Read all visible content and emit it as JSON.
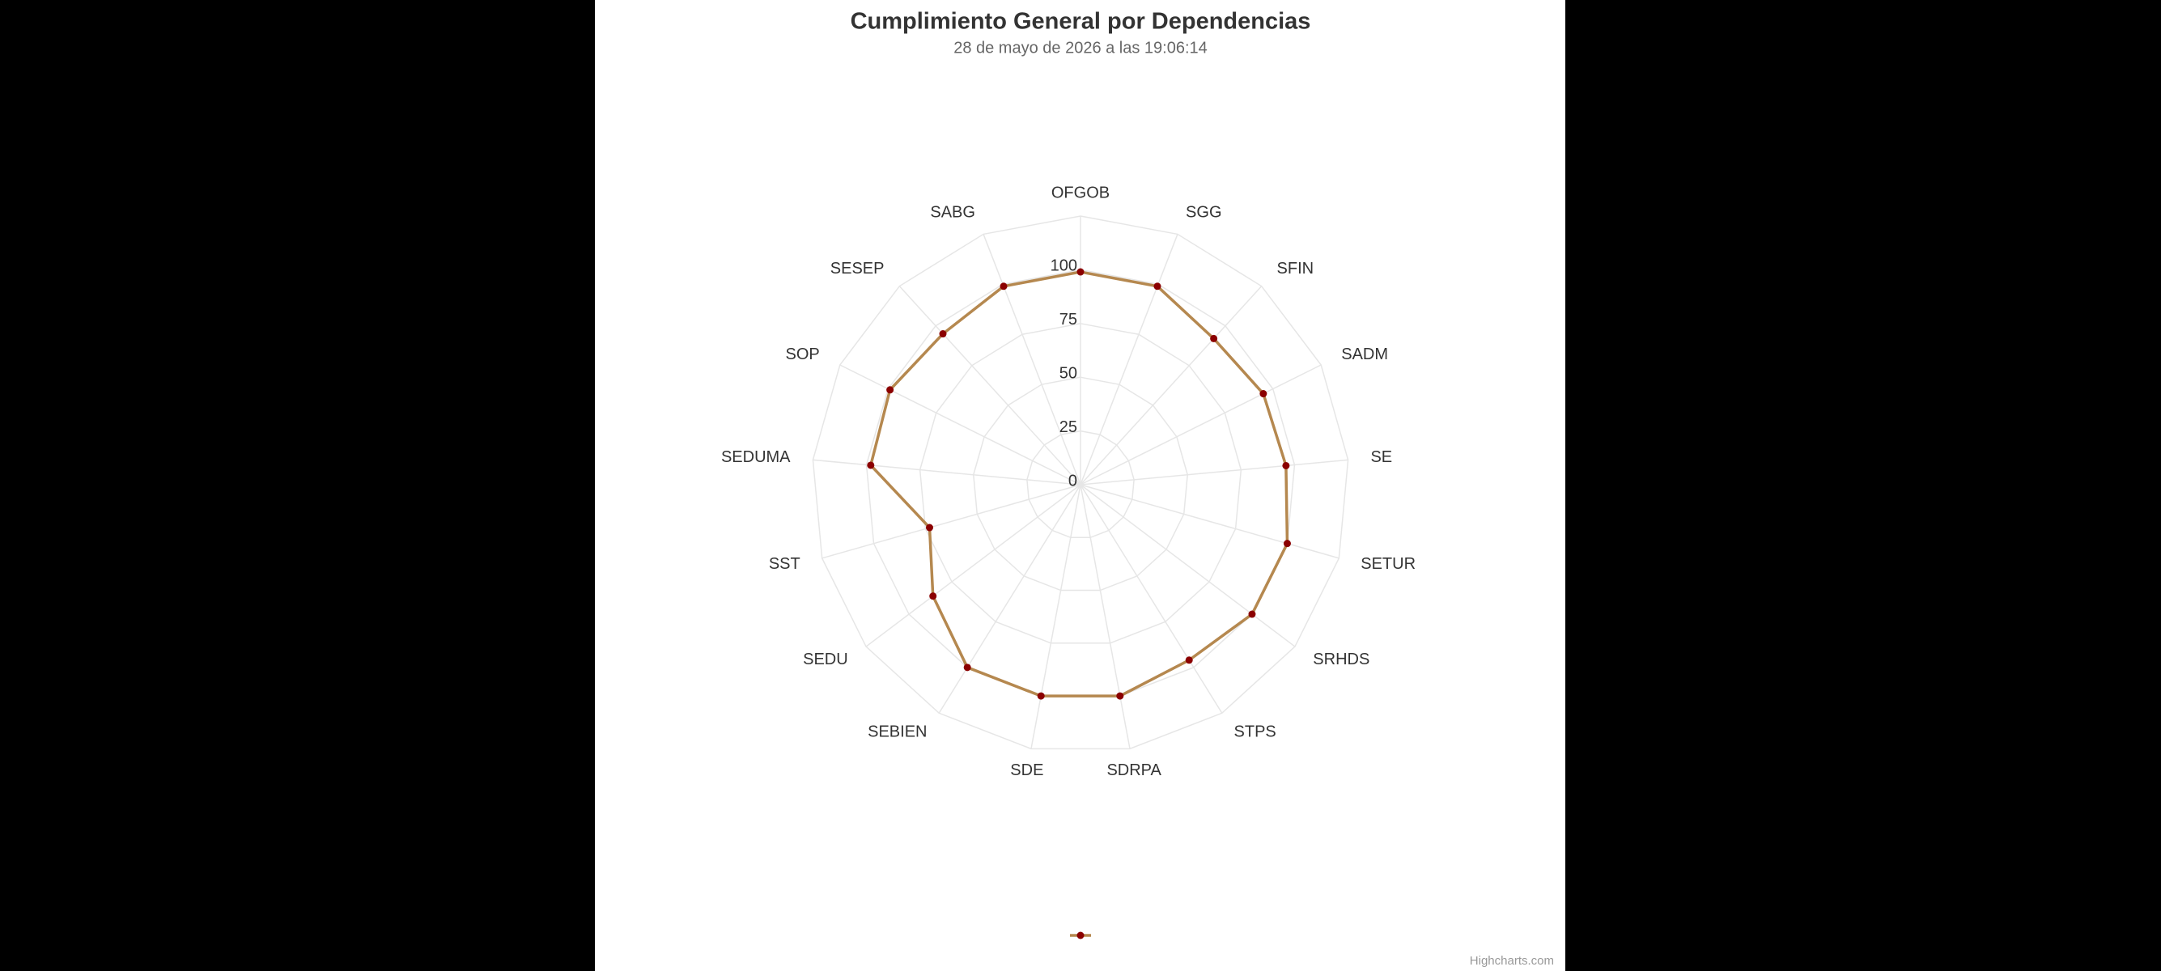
{
  "chart_data": {
    "type": "radar",
    "title": "Cumplimiento General por Dependencias",
    "subtitle": "28 de mayo de 2026 a las 19:06:14",
    "categories": [
      "OFGOB",
      "SGG",
      "SFIN",
      "SADM",
      "SE",
      "SETUR",
      "SRHDS",
      "STPS",
      "SDRPA",
      "SDE",
      "SEBIEN",
      "SEDU",
      "SST",
      "SEDUMA",
      "SOP",
      "SESEP",
      "SABG"
    ],
    "series": [
      {
        "color": "#b5884f",
        "marker_color": "#8b0000",
        "values": [
          99,
          99,
          92,
          95,
          96,
          100,
          100,
          96,
          100,
          100,
          100,
          86,
          73,
          98,
          99,
          95,
          99
        ]
      }
    ],
    "ylim": [
      0,
      125
    ],
    "yticks": [
      0,
      25,
      50,
      75,
      100
    ],
    "grid": true,
    "credits": "Highcharts.com"
  }
}
